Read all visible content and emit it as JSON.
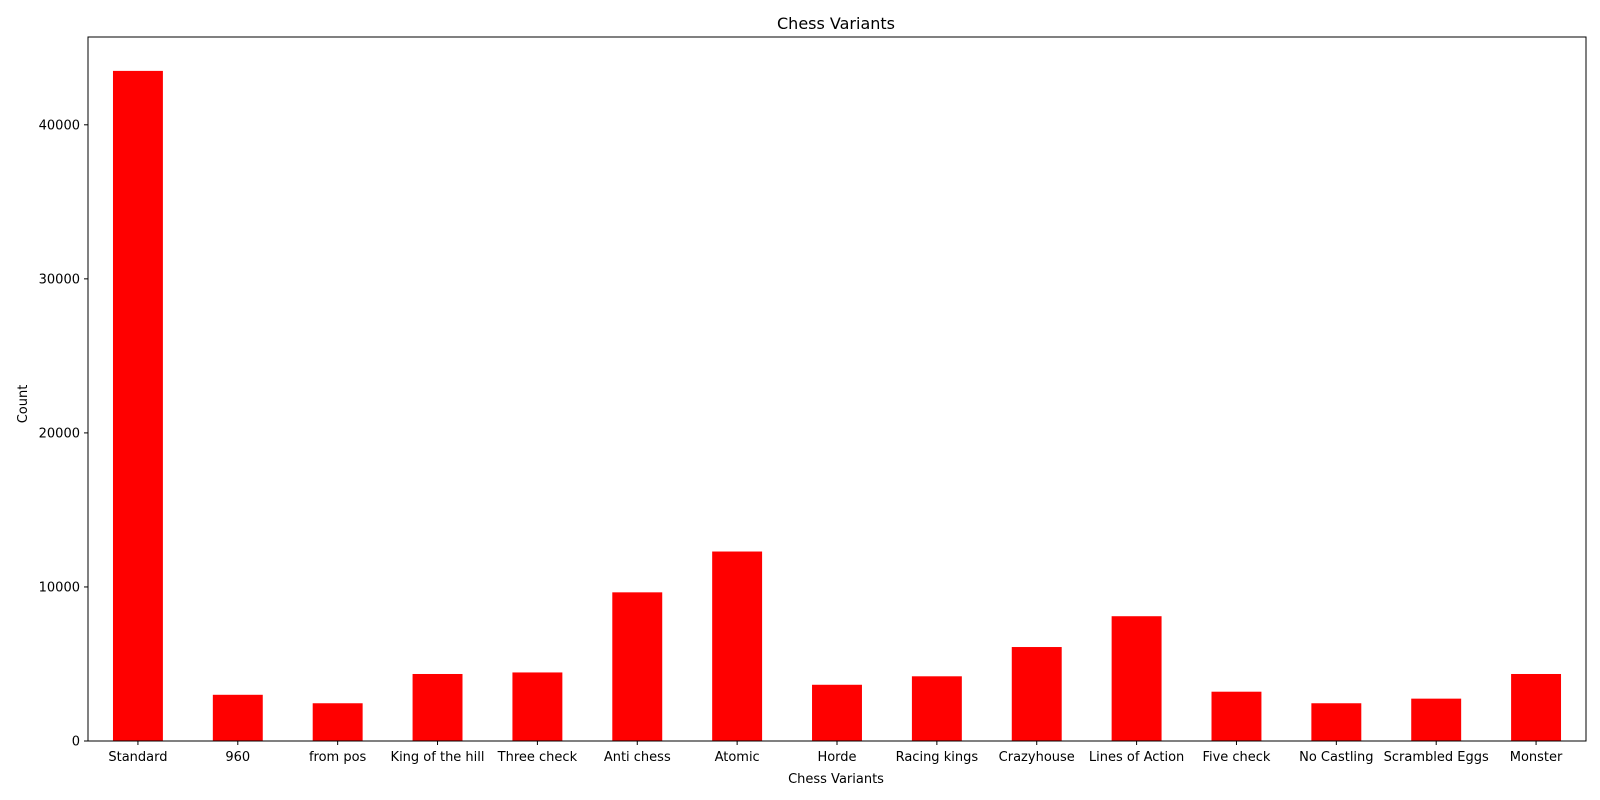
{
  "chart_data": {
    "type": "bar",
    "title": "Chess Variants",
    "xlabel": "Chess Variants",
    "ylabel": "Count",
    "categories": [
      "Standard",
      "960",
      "from pos",
      "King of the hill",
      "Three check",
      "Anti chess",
      "Atomic",
      "Horde",
      "Racing kings",
      "Crazyhouse",
      "Lines of Action",
      "Five check",
      "No Castling",
      "Scrambled Eggs",
      "Monster"
    ],
    "values": [
      43500,
      3000,
      2450,
      4350,
      4450,
      9650,
      12300,
      3650,
      4200,
      6100,
      8100,
      3200,
      2450,
      2750,
      4350
    ],
    "ylim": [
      0,
      45700
    ],
    "yticks": [
      0,
      10000,
      20000,
      30000,
      40000
    ],
    "bar_color": "#ff0000",
    "grid": false,
    "legend": "none"
  }
}
